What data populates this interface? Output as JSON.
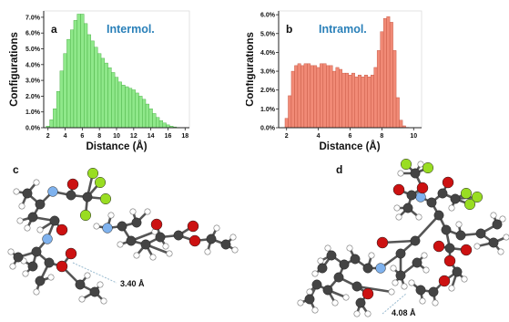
{
  "chart_data": [
    {
      "type": "bar",
      "panel_label": "a",
      "title": "Intermol.",
      "title_color": "#2a80b9",
      "bar_color": "#8fe88a",
      "bar_edge": "#3fa83a",
      "xlabel": "Distance  (Å)",
      "ylabel": "Configurations",
      "xlim": [
        1.5,
        18.5
      ],
      "ylim": [
        0,
        7.4
      ],
      "xticks": [
        2,
        4,
        6,
        8,
        10,
        12,
        14,
        16,
        18
      ],
      "yticks": [
        0,
        1,
        2,
        3,
        4,
        5,
        6,
        7
      ],
      "ytick_labels": [
        "0.0%",
        "1.0%",
        "2.0%",
        "3.0%",
        "4.0%",
        "5.0%",
        "6.0%",
        "7.0%"
      ],
      "bin_width": 0.4,
      "x": [
        2.0,
        2.4,
        2.8,
        3.2,
        3.6,
        4.0,
        4.4,
        4.8,
        5.2,
        5.6,
        6.0,
        6.4,
        6.8,
        7.2,
        7.6,
        8.0,
        8.4,
        8.8,
        9.2,
        9.6,
        10.0,
        10.4,
        10.8,
        11.2,
        11.6,
        12.0,
        12.4,
        12.8,
        13.2,
        13.6,
        14.0,
        14.4,
        14.8,
        15.2,
        15.6,
        16.0,
        16.4,
        16.8,
        17.2
      ],
      "values": [
        0.1,
        0.5,
        1.2,
        2.3,
        3.6,
        4.7,
        5.6,
        6.2,
        6.8,
        7.2,
        7.2,
        6.6,
        5.9,
        5.5,
        5.1,
        4.7,
        4.4,
        4.1,
        3.8,
        3.5,
        3.2,
        2.9,
        2.7,
        2.6,
        2.5,
        2.4,
        2.2,
        2.0,
        1.8,
        1.5,
        1.2,
        0.9,
        0.65,
        0.45,
        0.3,
        0.18,
        0.1,
        0.05,
        0.02
      ]
    },
    {
      "type": "bar",
      "panel_label": "b",
      "title": "Intramol.",
      "title_color": "#2a80b9",
      "bar_color": "#f18a76",
      "bar_edge": "#c0503c",
      "xlabel": "Distance  (Å)",
      "ylabel": "Configurations",
      "xlim": [
        1.5,
        10.5
      ],
      "ylim": [
        0,
        6.2
      ],
      "xticks": [
        2,
        4,
        6,
        8,
        10
      ],
      "yticks": [
        0,
        1,
        2,
        3,
        4,
        5,
        6
      ],
      "ytick_labels": [
        "0.0%",
        "1.0%",
        "2.0%",
        "3.0%",
        "4.0%",
        "5.0%",
        "6.0%"
      ],
      "bin_width": 0.2,
      "x": [
        2.0,
        2.2,
        2.4,
        2.6,
        2.8,
        3.0,
        3.2,
        3.4,
        3.6,
        3.8,
        4.0,
        4.2,
        4.4,
        4.6,
        4.8,
        5.0,
        5.2,
        5.4,
        5.6,
        5.8,
        6.0,
        6.2,
        6.4,
        6.6,
        6.8,
        7.0,
        7.2,
        7.4,
        7.6,
        7.8,
        8.0,
        8.2,
        8.4,
        8.6,
        8.8,
        9.0,
        9.2,
        9.4,
        9.6
      ],
      "values": [
        0.5,
        1.7,
        3.0,
        3.3,
        3.4,
        3.3,
        3.4,
        3.4,
        3.3,
        3.3,
        3.2,
        3.4,
        3.4,
        3.3,
        3.3,
        3.0,
        3.2,
        3.1,
        2.9,
        2.9,
        2.8,
        2.9,
        2.7,
        2.8,
        2.7,
        2.8,
        2.7,
        2.8,
        3.2,
        4.1,
        5.1,
        5.8,
        5.9,
        5.6,
        4.1,
        1.6,
        0.4,
        0.1,
        0.02
      ]
    }
  ],
  "panels": {
    "c_label": "c",
    "d_label": "d",
    "c_distance": "3.40 Å",
    "d_distance": "4.08 Å"
  },
  "colors": {
    "carbon": "#444444",
    "hydrogen": "#ffffff",
    "oxygen": "#cc1111",
    "nitrogen": "#7fb2ee",
    "fluorine": "#99dd22",
    "bond": "#555555"
  }
}
